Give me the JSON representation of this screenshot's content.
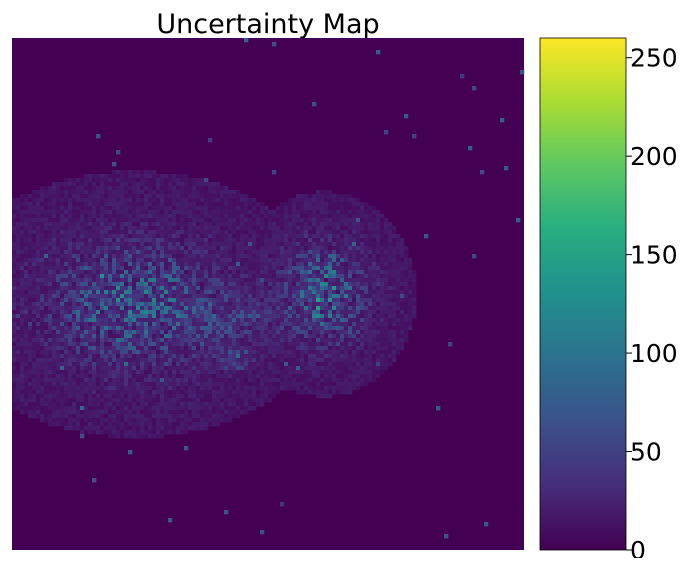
{
  "chart_data": {
    "type": "heatmap",
    "title": "Uncertainty Map",
    "xlabel": "",
    "ylabel": "",
    "axes_visible": false,
    "colormap": "viridis",
    "colormap_stops": [
      "#440154",
      "#472c7a",
      "#3b518b",
      "#2c718e",
      "#21908d",
      "#27ad81",
      "#5cc863",
      "#aadc32",
      "#fde725"
    ],
    "background_value": 15,
    "colorbar": {
      "range": [
        0,
        260
      ],
      "ticks": [
        0,
        50,
        100,
        150,
        200,
        250
      ],
      "tick_labels": [
        "0",
        "50",
        "100",
        "150",
        "200",
        "250"
      ]
    },
    "hotspots": [
      {
        "label": "left cluster",
        "center": [
          0.24,
          0.52
        ],
        "extent": [
          0.19,
          0.13
        ],
        "peak_value": 120
      },
      {
        "label": "right cluster",
        "center": [
          0.61,
          0.5
        ],
        "extent": [
          0.09,
          0.1
        ],
        "peak_value": 150
      },
      {
        "label": "bridge filaments",
        "center": [
          0.42,
          0.55
        ],
        "extent": [
          0.1,
          0.05
        ],
        "peak_value": 75
      },
      {
        "label": "lower spot",
        "center": [
          0.43,
          0.63
        ],
        "extent": [
          0.04,
          0.02
        ],
        "peak_value": 110
      }
    ]
  }
}
